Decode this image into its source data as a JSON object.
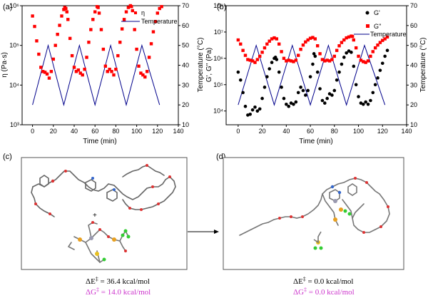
{
  "chart_data": [
    {
      "type": "line",
      "panel_label": "(a)",
      "xlabel": "Time (min)",
      "ylabel": "η (Pa·s)",
      "y2label": "Temperature (°C)",
      "xlim": [
        -10,
        140
      ],
      "xticks": [
        "0",
        "20",
        "40",
        "60",
        "80",
        "100",
        "120",
        "140"
      ],
      "yscale": "log",
      "ylim": [
        1000,
        1000000
      ],
      "yticks": [
        "10³",
        "10⁴",
        "10⁵",
        "10⁶"
      ],
      "y2lim": [
        10,
        70
      ],
      "y2ticks": [
        "10",
        "20",
        "30",
        "40",
        "50",
        "60",
        "70"
      ],
      "legend_position": "top-right",
      "series": [
        {
          "name": "η",
          "axis": "left",
          "style": "markers",
          "color": "#ff0000",
          "marker": "square",
          "points": [
            [
              0,
              550000
            ],
            [
              2,
              300000
            ],
            [
              4,
              130000
            ],
            [
              6,
              60000
            ],
            [
              8,
              28000
            ],
            [
              10,
              22000
            ],
            [
              12,
              21000
            ],
            [
              14,
              19000
            ],
            [
              16,
              15000
            ],
            [
              18,
              22000
            ],
            [
              20,
              45000
            ],
            [
              22,
              100000
            ],
            [
              24,
              190000
            ],
            [
              26,
              320000
            ],
            [
              28,
              550000
            ],
            [
              30,
              800000
            ],
            [
              31,
              900000
            ],
            [
              32,
              850000
            ],
            [
              33,
              700000
            ],
            [
              34,
              450000
            ],
            [
              36,
              150000
            ],
            [
              38,
              55000
            ],
            [
              40,
              28000
            ],
            [
              42,
              22000
            ],
            [
              44,
              24000
            ],
            [
              46,
              20000
            ],
            [
              48,
              18000
            ],
            [
              50,
              25000
            ],
            [
              52,
              50000
            ],
            [
              54,
              120000
            ],
            [
              56,
              250000
            ],
            [
              58,
              450000
            ],
            [
              60,
              700000
            ],
            [
              62,
              950000
            ],
            [
              63,
              900000
            ],
            [
              64,
              650000
            ],
            [
              66,
              250000
            ],
            [
              68,
              80000
            ],
            [
              70,
              30000
            ],
            [
              72,
              22000
            ],
            [
              74,
              25000
            ],
            [
              76,
              22000
            ],
            [
              78,
              18000
            ],
            [
              80,
              25000
            ],
            [
              82,
              55000
            ],
            [
              84,
              120000
            ],
            [
              86,
              260000
            ],
            [
              88,
              450000
            ],
            [
              90,
              700000
            ],
            [
              92,
              900000
            ],
            [
              94,
              1000000
            ],
            [
              95,
              950000
            ],
            [
              96,
              750000
            ],
            [
              98,
              250000
            ],
            [
              100,
              80000
            ],
            [
              102,
              30000
            ],
            [
              104,
              20000
            ],
            [
              106,
              18000
            ],
            [
              108,
              16000
            ],
            [
              110,
              22000
            ],
            [
              112,
              50000
            ],
            [
              114,
              110000
            ],
            [
              116,
              220000
            ],
            [
              118,
              400000
            ],
            [
              120,
              650000
            ],
            [
              122,
              850000
            ],
            [
              124,
              950000
            ]
          ]
        },
        {
          "name": "Temperature",
          "axis": "right",
          "style": "line",
          "color": "#00008b",
          "points": [
            [
              0,
              20
            ],
            [
              15,
              50
            ],
            [
              30,
              20
            ],
            [
              45,
              50
            ],
            [
              60,
              20
            ],
            [
              75,
              50
            ],
            [
              90,
              20
            ],
            [
              105,
              50
            ],
            [
              122,
              20
            ]
          ]
        }
      ]
    },
    {
      "type": "line",
      "panel_label": "(b)",
      "xlabel": "Time (min)",
      "ylabel": "G', G'' (Pa)",
      "y2label": "Temperature (°C)",
      "xlim": [
        -10,
        140
      ],
      "xticks": [
        "0",
        "20",
        "40",
        "60",
        "80",
        "100",
        "120",
        "140"
      ],
      "yscale": "log",
      "ylim": [
        3000,
        100000000
      ],
      "yticks": [
        "10⁴",
        "10⁵",
        "10⁶",
        "10⁷",
        "10⁸"
      ],
      "y2lim": [
        10,
        70
      ],
      "y2ticks": [
        "10",
        "20",
        "30",
        "40",
        "50",
        "60",
        "70"
      ],
      "legend_position": "top-right",
      "series": [
        {
          "name": "G'",
          "axis": "left",
          "style": "markers",
          "color": "#000000",
          "marker": "circle",
          "points": [
            [
              0,
              300000
            ],
            [
              2,
              150000
            ],
            [
              4,
              50000
            ],
            [
              6,
              15000
            ],
            [
              8,
              7000
            ],
            [
              10,
              7500
            ],
            [
              12,
              11000
            ],
            [
              14,
              14000
            ],
            [
              16,
              10000
            ],
            [
              18,
              12000
            ],
            [
              20,
              30000
            ],
            [
              22,
              80000
            ],
            [
              24,
              200000
            ],
            [
              26,
              400000
            ],
            [
              28,
              700000
            ],
            [
              30,
              1000000
            ],
            [
              31,
              1100000
            ],
            [
              32,
              900000
            ],
            [
              34,
              300000
            ],
            [
              36,
              80000
            ],
            [
              38,
              30000
            ],
            [
              40,
              18000
            ],
            [
              42,
              15000
            ],
            [
              44,
              20000
            ],
            [
              46,
              18000
            ],
            [
              48,
              22000
            ],
            [
              50,
              50000
            ],
            [
              52,
              80000
            ],
            [
              54,
              60000
            ],
            [
              56,
              40000
            ],
            [
              58,
              60000
            ],
            [
              60,
              200000
            ],
            [
              62,
              600000
            ],
            [
              63,
              1500000
            ],
            [
              64,
              1200000
            ],
            [
              66,
              300000
            ],
            [
              68,
              70000
            ],
            [
              70,
              25000
            ],
            [
              72,
              20000
            ],
            [
              74,
              30000
            ],
            [
              76,
              45000
            ],
            [
              78,
              40000
            ],
            [
              80,
              60000
            ],
            [
              82,
              150000
            ],
            [
              84,
              300000
            ],
            [
              86,
              600000
            ],
            [
              88,
              1100000
            ],
            [
              90,
              1600000
            ],
            [
              92,
              1900000
            ],
            [
              94,
              1700000
            ],
            [
              96,
              500000
            ],
            [
              98,
              100000
            ],
            [
              100,
              35000
            ],
            [
              102,
              20000
            ],
            [
              104,
              18000
            ],
            [
              106,
              22000
            ],
            [
              108,
              18000
            ],
            [
              110,
              25000
            ],
            [
              112,
              50000
            ],
            [
              114,
              100000
            ],
            [
              116,
              180000
            ],
            [
              118,
              350000
            ],
            [
              120,
              650000
            ],
            [
              122,
              1200000
            ],
            [
              124,
              2000000
            ]
          ]
        },
        {
          "name": "G''",
          "axis": "left",
          "style": "markers",
          "color": "#ff0000",
          "marker": "square",
          "points": [
            [
              0,
              5000000
            ],
            [
              2,
              3500000
            ],
            [
              4,
              2000000
            ],
            [
              6,
              1300000
            ],
            [
              8,
              900000
            ],
            [
              10,
              850000
            ],
            [
              12,
              800000
            ],
            [
              14,
              700000
            ],
            [
              16,
              900000
            ],
            [
              18,
              1200000
            ],
            [
              20,
              1700000
            ],
            [
              22,
              2500000
            ],
            [
              24,
              3500000
            ],
            [
              26,
              4500000
            ],
            [
              28,
              5500000
            ],
            [
              30,
              6000000
            ],
            [
              32,
              5500000
            ],
            [
              34,
              3500000
            ],
            [
              36,
              1800000
            ],
            [
              38,
              1000000
            ],
            [
              40,
              800000
            ],
            [
              42,
              850000
            ],
            [
              44,
              800000
            ],
            [
              46,
              750000
            ],
            [
              48,
              850000
            ],
            [
              50,
              1300000
            ],
            [
              52,
              2200000
            ],
            [
              54,
              3200000
            ],
            [
              56,
              4200000
            ],
            [
              58,
              5000000
            ],
            [
              60,
              5800000
            ],
            [
              62,
              6200000
            ],
            [
              64,
              5500000
            ],
            [
              66,
              3000000
            ],
            [
              68,
              1500000
            ],
            [
              70,
              900000
            ],
            [
              72,
              800000
            ],
            [
              74,
              850000
            ],
            [
              76,
              800000
            ],
            [
              78,
              900000
            ],
            [
              80,
              1200000
            ],
            [
              82,
              2000000
            ],
            [
              84,
              3000000
            ],
            [
              86,
              4000000
            ],
            [
              88,
              5000000
            ],
            [
              90,
              6000000
            ],
            [
              92,
              6500000
            ],
            [
              94,
              7000000
            ],
            [
              95,
              6800000
            ],
            [
              96,
              5000000
            ],
            [
              98,
              2500000
            ],
            [
              100,
              1200000
            ],
            [
              102,
              850000
            ],
            [
              104,
              750000
            ],
            [
              106,
              700000
            ],
            [
              108,
              800000
            ],
            [
              110,
              1200000
            ],
            [
              112,
              1800000
            ],
            [
              114,
              2500000
            ],
            [
              116,
              3200000
            ],
            [
              118,
              4000000
            ],
            [
              120,
              4800000
            ],
            [
              122,
              5500000
            ],
            [
              124,
              6500000
            ]
          ]
        },
        {
          "name": "Temperature",
          "axis": "right",
          "style": "line",
          "color": "#00008b",
          "points": [
            [
              0,
              20
            ],
            [
              15,
              50
            ],
            [
              30,
              20
            ],
            [
              45,
              50
            ],
            [
              60,
              20
            ],
            [
              75,
              50
            ],
            [
              90,
              20
            ],
            [
              105,
              50
            ],
            [
              122,
              20
            ]
          ]
        }
      ]
    }
  ],
  "panel_c": {
    "label": "(c)",
    "energy_line_1_prefix": "ΔE",
    "energy_line_1_value": " = 36.4 kcal/mol",
    "energy_line_2_prefix": "ΔG",
    "energy_line_2_value": " = 14.0 kcal/mol",
    "plus_sign": "+",
    "color_energy": "#000000",
    "color_free_energy": "#cc33cc"
  },
  "panel_d": {
    "label": "(d)",
    "energy_line_1_prefix": "ΔE",
    "energy_line_1_value": " = 0.0 kcal/mol",
    "energy_line_2_prefix": "ΔG",
    "energy_line_2_value": " = 0.0 kcal/mol",
    "color_energy": "#000000",
    "color_free_energy": "#cc33cc"
  },
  "double_dagger": "‡"
}
